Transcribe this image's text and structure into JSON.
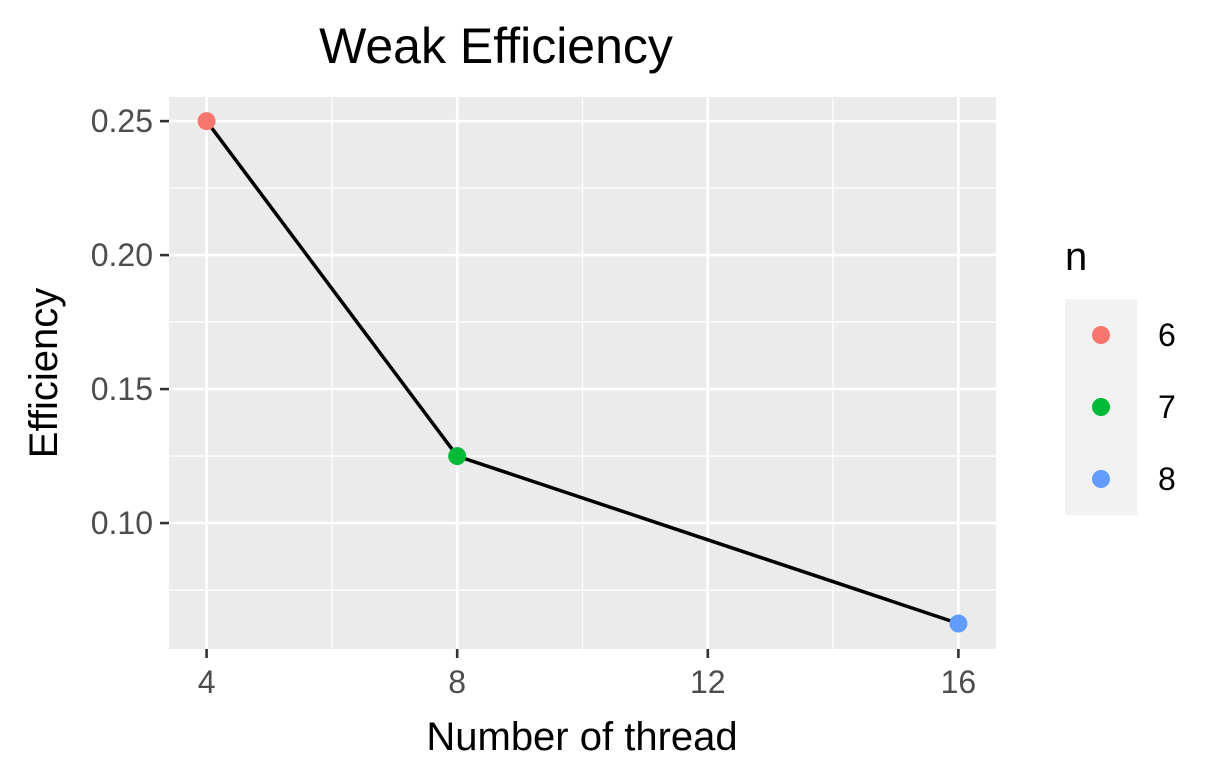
{
  "chart_data": {
    "type": "line",
    "title": "Weak Efficiency",
    "xlabel": "Number of thread",
    "ylabel": "Efficiency",
    "x": [
      4,
      8,
      16
    ],
    "y": [
      0.25,
      0.125,
      0.0625
    ],
    "point_groups": [
      "6",
      "7",
      "8"
    ],
    "point_colors": [
      "#F8766D",
      "#00BA38",
      "#619CFF"
    ],
    "line_color": "#000000",
    "xlim": [
      3.4,
      16.6
    ],
    "ylim": [
      0.053,
      0.259
    ],
    "x_ticks": [
      4,
      8,
      12,
      16
    ],
    "x_tick_labels": [
      "4",
      "8",
      "12",
      "16"
    ],
    "x_minor_ticks": [
      6,
      10,
      14
    ],
    "y_ticks": [
      0.1,
      0.15,
      0.2,
      0.25
    ],
    "y_tick_labels": [
      "0.10",
      "0.15",
      "0.20",
      "0.25"
    ],
    "y_minor_ticks": [
      0.075,
      0.125,
      0.175,
      0.225
    ],
    "grid": true,
    "panel_background": "#EBEBEB",
    "legend": {
      "title": "n",
      "position": "right",
      "entries": [
        {
          "label": "6",
          "color": "#F8766D"
        },
        {
          "label": "7",
          "color": "#00BA38"
        },
        {
          "label": "8",
          "color": "#619CFF"
        }
      ]
    }
  }
}
